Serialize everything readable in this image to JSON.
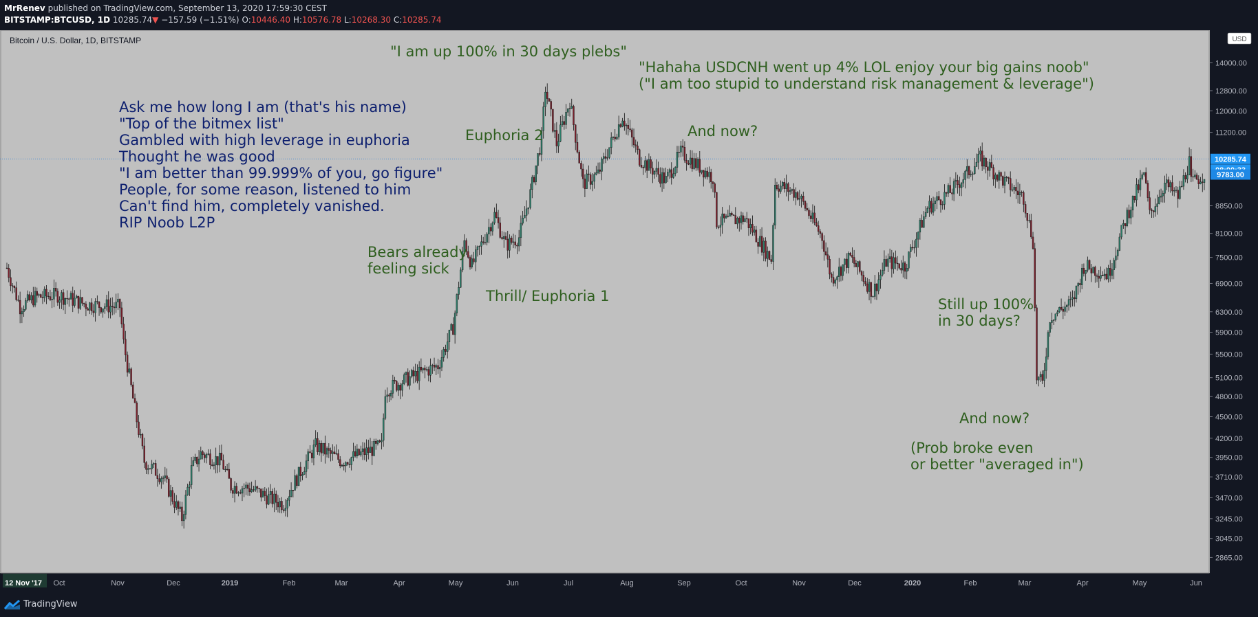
{
  "header": {
    "author": "MrRenev",
    "published_text": "published on TradingView.com, September 13, 2020 17:59:30 CEST",
    "symbol_line": "BITSTAMP:BTCUSD, 1D",
    "last": "10285.74",
    "change": "−157.59 (−1.51%)",
    "open_label": "O:",
    "open": "10446.40",
    "high_label": "H:",
    "high": "10576.78",
    "low_label": "L:",
    "low": "10268.30",
    "close_label": "C:",
    "close": "10285.74",
    "down_arrow": "▼"
  },
  "chart_title": "Bitcoin / U.S. Dollar, 1D, BITSTAMP",
  "currency_badge": "USD",
  "price_tags": {
    "last": "10285.74",
    "countdown": "08:00:33",
    "ma": "9783.00"
  },
  "footer": {
    "brand": "TradingView",
    "logo_icon": "tradingview-logo-icon"
  },
  "colors": {
    "up": "#26a69a",
    "down": "#ef5350",
    "annotation_green": "#2e5e1e",
    "annotation_navy": "#0d1f6e",
    "plot_bg": "#c0c0c0"
  },
  "annotations": [
    {
      "id": "story",
      "color": "navy",
      "lines": [
        "Ask me how long I am (that's his name)",
        "\"Top of the bitmex list\"",
        "Gambled with high leverage in euphoria",
        "Thought he was good",
        "\"I am better than 99.999% of you, go figure\"",
        "People, for some reason, listened to him",
        "Can't find him, completely vanished.",
        "RIP Noob L2P"
      ]
    },
    {
      "id": "up100",
      "color": "green",
      "lines": [
        "\"I am up 100% in 30 days plebs\""
      ]
    },
    {
      "id": "hahaha",
      "color": "green",
      "lines": [
        "\"Hahaha USDCNH went up 4% LOL enjoy your big gains noob\"",
        "(\"I am too stupid to understand risk management & leverage\")"
      ]
    },
    {
      "id": "euphoria2",
      "color": "green",
      "lines": [
        "Euphoria 2"
      ]
    },
    {
      "id": "andnow1",
      "color": "green",
      "lines": [
        "And now?"
      ]
    },
    {
      "id": "bears",
      "color": "green",
      "lines": [
        "Bears already",
        "feeling sick"
      ]
    },
    {
      "id": "thrill",
      "color": "green",
      "lines": [
        "Thrill/ Euphoria 1"
      ]
    },
    {
      "id": "stillup",
      "color": "green",
      "lines": [
        "Still up 100%",
        "in 30 days?"
      ]
    },
    {
      "id": "andnow2",
      "color": "green",
      "lines": [
        "And now?"
      ]
    },
    {
      "id": "probbroke",
      "color": "green",
      "lines": [
        "(Prob broke even",
        "or better \"averaged in\")"
      ]
    }
  ],
  "chart_data": {
    "type": "candlestick",
    "title": "Bitcoin / U.S. Dollar, 1D, BITSTAMP",
    "y_scale": "log",
    "ylim": [
      2750,
      15200
    ],
    "y_ticks": [
      "14000.00",
      "12800.00",
      "12000.00",
      "11200.00",
      "10285.74",
      "9783.00",
      "8850.00",
      "8100.00",
      "7500.00",
      "6900.00",
      "6300.00",
      "5900.00",
      "5500.00",
      "5100.00",
      "4800.00",
      "4500.00",
      "4200.00",
      "3950.00",
      "3710.00",
      "3470.00",
      "3245.00",
      "3045.00",
      "2865.00"
    ],
    "x_labels": [
      "12 Nov '17",
      "Oct",
      "Nov",
      "Dec",
      "2019",
      "Feb",
      "Mar",
      "Apr",
      "May",
      "Jun",
      "Jul",
      "Aug",
      "Sep",
      "Oct",
      "Nov",
      "Dec",
      "2020",
      "Feb",
      "Mar",
      "Apr",
      "May",
      "Jun"
    ],
    "x_range": [
      "2018-09-13",
      "2020-06-10"
    ],
    "anchors": [
      [
        "2018-09-13",
        7250
      ],
      [
        "2018-09-20",
        6400
      ],
      [
        "2018-09-28",
        6600
      ],
      [
        "2018-10-10",
        6650
      ],
      [
        "2018-10-25",
        6450
      ],
      [
        "2018-11-12",
        6400
      ],
      [
        "2018-11-14",
        5700
      ],
      [
        "2018-11-20",
        4600
      ],
      [
        "2018-11-25",
        3900
      ],
      [
        "2018-12-05",
        3700
      ],
      [
        "2018-12-15",
        3250
      ],
      [
        "2018-12-20",
        3800
      ],
      [
        "2018-12-25",
        4000
      ],
      [
        "2019-01-05",
        3900
      ],
      [
        "2019-01-10",
        3600
      ],
      [
        "2019-01-20",
        3580
      ],
      [
        "2019-02-01",
        3450
      ],
      [
        "2019-02-07",
        3400
      ],
      [
        "2019-02-12",
        3620
      ],
      [
        "2019-02-24",
        4100
      ],
      [
        "2019-03-10",
        3900
      ],
      [
        "2019-03-31",
        4100
      ],
      [
        "2019-04-02",
        4900
      ],
      [
        "2019-04-15",
        5100
      ],
      [
        "2019-04-30",
        5300
      ],
      [
        "2019-05-08",
        6000
      ],
      [
        "2019-05-14",
        7900
      ],
      [
        "2019-05-18",
        7300
      ],
      [
        "2019-05-30",
        8600
      ],
      [
        "2019-06-05",
        7800
      ],
      [
        "2019-06-12",
        8000
      ],
      [
        "2019-06-18",
        9200
      ],
      [
        "2019-06-24",
        11000
      ],
      [
        "2019-06-26",
        12900
      ],
      [
        "2019-07-02",
        10800
      ],
      [
        "2019-07-09",
        12400
      ],
      [
        "2019-07-16",
        9500
      ],
      [
        "2019-07-24",
        9800
      ],
      [
        "2019-08-06",
        11800
      ],
      [
        "2019-08-15",
        10300
      ],
      [
        "2019-08-29",
        9600
      ],
      [
        "2019-09-06",
        10500
      ],
      [
        "2019-09-23",
        9700
      ],
      [
        "2019-09-25",
        8400
      ],
      [
        "2019-10-10",
        8500
      ],
      [
        "2019-10-24",
        7450
      ],
      [
        "2019-10-26",
        9500
      ],
      [
        "2019-11-07",
        9200
      ],
      [
        "2019-11-20",
        8000
      ],
      [
        "2019-11-25",
        7000
      ],
      [
        "2019-12-05",
        7500
      ],
      [
        "2019-12-17",
        6700
      ],
      [
        "2019-12-24",
        7400
      ],
      [
        "2020-01-03",
        7300
      ],
      [
        "2020-01-15",
        8800
      ],
      [
        "2020-01-28",
        9300
      ],
      [
        "2020-02-12",
        10300
      ],
      [
        "2020-02-24",
        9600
      ],
      [
        "2020-03-06",
        9100
      ],
      [
        "2020-03-11",
        7900
      ],
      [
        "2020-03-13",
        5100
      ],
      [
        "2020-03-16",
        5000
      ],
      [
        "2020-03-20",
        6200
      ],
      [
        "2020-04-01",
        6500
      ],
      [
        "2020-04-07",
        7300
      ],
      [
        "2020-04-20",
        7100
      ],
      [
        "2020-04-30",
        8600
      ],
      [
        "2020-05-09",
        9800
      ],
      [
        "2020-05-12",
        8600
      ],
      [
        "2020-05-20",
        9500
      ],
      [
        "2020-05-27",
        9100
      ],
      [
        "2020-06-02",
        10200
      ],
      [
        "2020-06-03",
        9500
      ],
      [
        "2020-06-10",
        9800
      ]
    ]
  }
}
